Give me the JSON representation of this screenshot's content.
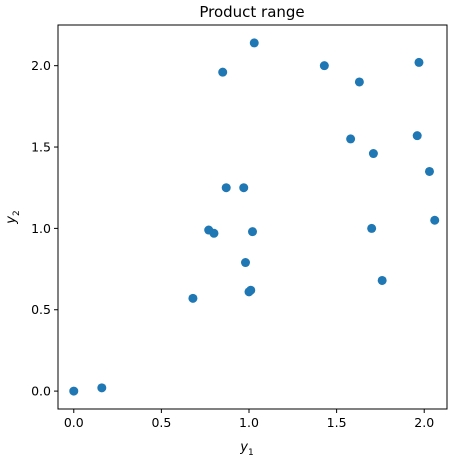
{
  "chart_data": {
    "type": "scatter",
    "title": "Product range",
    "xlabel": "y",
    "xlabel_sub": "1",
    "ylabel": "y",
    "ylabel_sub": "2",
    "xlim": [
      -0.09,
      2.13
    ],
    "ylim": [
      -0.11,
      2.25
    ],
    "xticks": [
      0.0,
      0.5,
      1.0,
      1.5,
      2.0
    ],
    "xtick_labels": [
      "0.0",
      "0.5",
      "1.0",
      "1.5",
      "2.0"
    ],
    "yticks": [
      0.0,
      0.5,
      1.0,
      1.5,
      2.0
    ],
    "ytick_labels": [
      "0.0",
      "0.5",
      "1.0",
      "1.5",
      "2.0"
    ],
    "grid": false,
    "marker_color": "#1f77b4",
    "points": [
      {
        "x": 0.0,
        "y": 0.0
      },
      {
        "x": 0.16,
        "y": 0.02
      },
      {
        "x": 0.68,
        "y": 0.57
      },
      {
        "x": 0.77,
        "y": 0.99
      },
      {
        "x": 0.8,
        "y": 0.97
      },
      {
        "x": 0.85,
        "y": 1.96
      },
      {
        "x": 0.87,
        "y": 1.25
      },
      {
        "x": 0.97,
        "y": 1.25
      },
      {
        "x": 0.98,
        "y": 0.79
      },
      {
        "x": 1.0,
        "y": 0.61
      },
      {
        "x": 1.01,
        "y": 0.62
      },
      {
        "x": 1.02,
        "y": 0.98
      },
      {
        "x": 1.03,
        "y": 2.14
      },
      {
        "x": 1.43,
        "y": 2.0
      },
      {
        "x": 1.58,
        "y": 1.55
      },
      {
        "x": 1.63,
        "y": 1.9
      },
      {
        "x": 1.7,
        "y": 1.0
      },
      {
        "x": 1.71,
        "y": 1.46
      },
      {
        "x": 1.76,
        "y": 0.68
      },
      {
        "x": 1.96,
        "y": 1.57
      },
      {
        "x": 1.97,
        "y": 2.02
      },
      {
        "x": 2.03,
        "y": 1.35
      },
      {
        "x": 2.06,
        "y": 1.05
      }
    ]
  }
}
